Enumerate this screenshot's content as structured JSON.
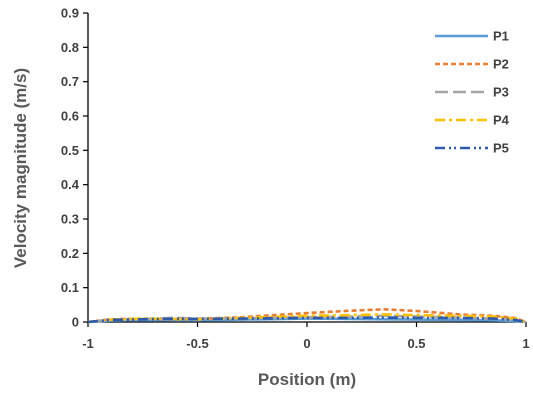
{
  "chart_data": {
    "type": "line",
    "title": "",
    "xlabel": "Position (m)",
    "ylabel": "Velocity magnitude (m/s)",
    "xlim": [
      -1,
      1
    ],
    "ylim": [
      0,
      0.9
    ],
    "x_ticks": [
      "-1",
      "-0.5",
      "0",
      "0.5",
      "1"
    ],
    "y_ticks": [
      "0",
      "0.1",
      "0.2",
      "0.3",
      "0.4",
      "0.5",
      "0.6",
      "0.7",
      "0.8",
      "0.9"
    ],
    "grid": false,
    "legend_position": "top-right",
    "series": [
      {
        "name": "P1",
        "color": "#5B9BD5",
        "style": "solid",
        "x": [
          -1,
          -0.9,
          -0.75,
          -0.6,
          -0.5,
          -0.3,
          -0.1,
          0,
          0.2,
          0.35,
          0.5,
          0.7,
          0.85,
          0.95,
          1
        ],
        "y": [
          0,
          0.004,
          0.006,
          0.005,
          0.005,
          0.007,
          0.009,
          0.01,
          0.009,
          0.008,
          0.007,
          0.006,
          0.005,
          0.003,
          0
        ]
      },
      {
        "name": "P2",
        "color": "#ED7D31",
        "style": "dash",
        "x": [
          -1,
          -0.9,
          -0.75,
          -0.6,
          -0.5,
          -0.3,
          -0.1,
          0,
          0.2,
          0.35,
          0.5,
          0.7,
          0.85,
          0.95,
          1
        ],
        "y": [
          0,
          0.008,
          0.01,
          0.008,
          0.009,
          0.014,
          0.022,
          0.026,
          0.033,
          0.037,
          0.032,
          0.022,
          0.018,
          0.012,
          0
        ]
      },
      {
        "name": "P3",
        "color": "#A5A5A5",
        "style": "longdash",
        "x": [
          -1,
          -0.9,
          -0.75,
          -0.6,
          -0.5,
          -0.3,
          -0.1,
          0,
          0.2,
          0.35,
          0.5,
          0.7,
          0.85,
          0.95,
          1
        ],
        "y": [
          0,
          0.006,
          0.009,
          0.012,
          0.01,
          0.011,
          0.013,
          0.014,
          0.016,
          0.018,
          0.016,
          0.013,
          0.01,
          0.007,
          0
        ]
      },
      {
        "name": "P4",
        "color": "#FFC000",
        "style": "dashdot",
        "x": [
          -1,
          -0.9,
          -0.75,
          -0.6,
          -0.5,
          -0.3,
          -0.1,
          0,
          0.2,
          0.35,
          0.5,
          0.7,
          0.85,
          0.95,
          1
        ],
        "y": [
          0,
          0.007,
          0.01,
          0.009,
          0.008,
          0.012,
          0.016,
          0.018,
          0.02,
          0.022,
          0.02,
          0.018,
          0.016,
          0.01,
          0
        ]
      },
      {
        "name": "P5",
        "color": "#2E5AAC",
        "style": "dashdotdot",
        "x": [
          -1,
          -0.9,
          -0.75,
          -0.6,
          -0.5,
          -0.3,
          -0.1,
          0,
          0.2,
          0.35,
          0.5,
          0.7,
          0.85,
          0.95,
          1
        ],
        "y": [
          0,
          0.006,
          0.008,
          0.01,
          0.009,
          0.01,
          0.011,
          0.012,
          0.012,
          0.013,
          0.012,
          0.012,
          0.01,
          0.006,
          0
        ]
      }
    ]
  }
}
